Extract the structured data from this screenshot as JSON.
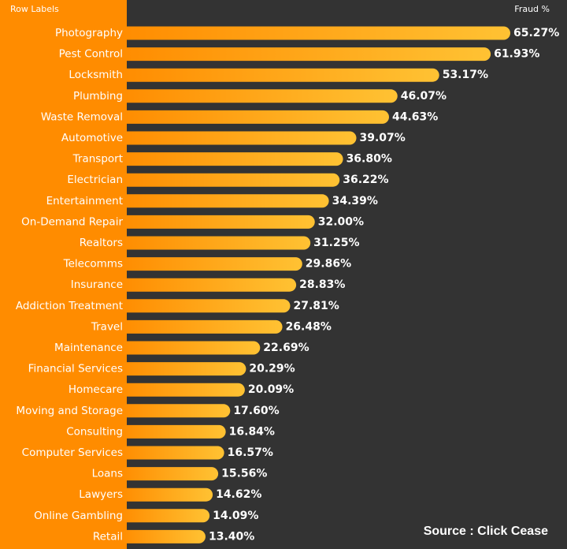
{
  "chart_data": {
    "type": "bar",
    "orientation": "horizontal",
    "row_header": "Row Labels",
    "value_header": "Fraud %",
    "categories": [
      "Photography",
      "Pest Control",
      "Locksmith",
      "Plumbing",
      "Waste Removal",
      "Automotive",
      "Transport",
      "Electrician",
      "Entertainment",
      "On-Demand Repair",
      "Realtors",
      "Telecomms",
      "Insurance",
      "Addiction Treatment",
      "Travel",
      "Maintenance",
      "Financial Services",
      "Homecare",
      "Moving and Storage",
      "Consulting",
      "Computer Services",
      "Loans",
      "Lawyers",
      "Online Gambling",
      "Retail"
    ],
    "values": [
      65.27,
      61.93,
      53.17,
      46.07,
      44.63,
      39.07,
      36.8,
      36.22,
      34.39,
      32.0,
      31.25,
      29.86,
      28.83,
      27.81,
      26.48,
      22.69,
      20.29,
      20.09,
      17.6,
      16.84,
      16.57,
      15.56,
      14.62,
      14.09,
      13.4
    ],
    "value_labels": [
      "65.27%",
      "61.93%",
      "53.17%",
      "46.07%",
      "44.63%",
      "39.07%",
      "36.80%",
      "36.22%",
      "34.39%",
      "32.00%",
      "31.25%",
      "29.86%",
      "28.83%",
      "27.81%",
      "26.48%",
      "22.69%",
      "20.29%",
      "20.09%",
      "17.60%",
      "16.84%",
      "16.57%",
      "15.56%",
      "14.62%",
      "14.09%",
      "13.40%"
    ],
    "xlim": [
      0,
      75
    ],
    "grid": false,
    "legend": "none",
    "colors": {
      "background": "#333333",
      "label_panel": "#ff8c00",
      "bar_start": "#ff8c00",
      "bar_end": "#ffc233",
      "text": "#ffffff"
    }
  },
  "source": "Source : Click Cease"
}
